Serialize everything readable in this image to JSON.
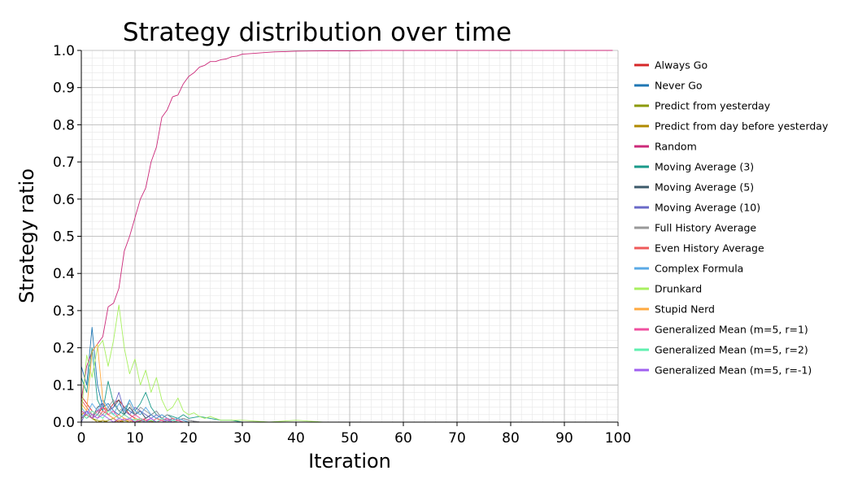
{
  "chart_data": {
    "type": "line",
    "title": "Strategy distribution over time",
    "xlabel": "Iteration",
    "ylabel": "Strategy ratio",
    "xlim": [
      0,
      100
    ],
    "ylim": [
      0,
      1
    ],
    "x_ticks": [
      0,
      10,
      20,
      30,
      40,
      50,
      60,
      70,
      80,
      90,
      100
    ],
    "y_ticks": [
      "0.0",
      "0.1",
      "0.2",
      "0.3",
      "0.4",
      "0.5",
      "0.6",
      "0.7",
      "0.8",
      "0.9",
      "1.0"
    ],
    "grid": "major and minor",
    "legend_position": "right",
    "series": [
      {
        "name": "Always Go",
        "color": "#d62728",
        "x": [
          0,
          1,
          2,
          3,
          4,
          5,
          6,
          7,
          8,
          9,
          10,
          11,
          12,
          13,
          14,
          15,
          16,
          17,
          18,
          19,
          20,
          22,
          25
        ],
        "y": [
          0.07,
          0.05,
          0.03,
          0.02,
          0.04,
          0.03,
          0.05,
          0.06,
          0.04,
          0.02,
          0.01,
          0.005,
          0.01,
          0.02,
          0.01,
          0.005,
          0.01,
          0.0,
          0.005,
          0.01,
          0.005,
          0.0,
          0.0
        ]
      },
      {
        "name": "Never Go",
        "color": "#1f77b4",
        "x": [
          0,
          1,
          2,
          3,
          4,
          5,
          6,
          7,
          8,
          9,
          10,
          11,
          12,
          13,
          14,
          15,
          16,
          17,
          18,
          19,
          20,
          22,
          25
        ],
        "y": [
          0.15,
          0.1,
          0.255,
          0.1,
          0.04,
          0.05,
          0.03,
          0.02,
          0.04,
          0.03,
          0.02,
          0.03,
          0.01,
          0.02,
          0.03,
          0.01,
          0.02,
          0.01,
          0.005,
          0.01,
          0.005,
          0.0,
          0.0
        ]
      },
      {
        "name": "Predict from yesterday",
        "color": "#8c9a0a",
        "x": [
          0,
          1,
          2,
          3,
          4,
          5,
          6,
          7,
          8,
          9,
          10,
          12,
          14,
          16,
          18,
          20,
          25
        ],
        "y": [
          0.01,
          0.02,
          0.01,
          0.005,
          0.0,
          0.005,
          0.01,
          0.0,
          0.005,
          0.0,
          0.0,
          0.005,
          0.0,
          0.0,
          0.0,
          0.0,
          0.0
        ]
      },
      {
        "name": "Predict from day before yesterday",
        "color": "#b08a00",
        "x": [
          0,
          1,
          2,
          3,
          4,
          5,
          6,
          7,
          8,
          9,
          10,
          12,
          14,
          16,
          18,
          20,
          25
        ],
        "y": [
          0.02,
          0.03,
          0.01,
          0.0,
          0.005,
          0.0,
          0.0,
          0.005,
          0.0,
          0.0,
          0.0,
          0.0,
          0.0,
          0.0,
          0.0,
          0.0,
          0.0
        ]
      },
      {
        "name": "Random",
        "color": "#cc2a7a",
        "x": [
          0,
          1,
          2,
          3,
          4,
          5,
          6,
          7,
          8,
          9,
          10,
          11,
          12,
          13,
          14,
          15,
          16,
          17,
          18,
          19,
          20,
          21,
          22,
          23,
          24,
          25,
          26,
          27,
          28,
          29,
          30,
          32,
          34,
          36,
          38,
          40,
          45,
          50,
          55,
          60,
          70,
          80,
          90,
          99
        ],
        "y": [
          0.06,
          0.15,
          0.19,
          0.21,
          0.23,
          0.31,
          0.32,
          0.36,
          0.46,
          0.5,
          0.55,
          0.6,
          0.63,
          0.7,
          0.74,
          0.82,
          0.84,
          0.875,
          0.88,
          0.91,
          0.93,
          0.94,
          0.955,
          0.96,
          0.97,
          0.97,
          0.975,
          0.977,
          0.983,
          0.985,
          0.99,
          0.992,
          0.994,
          0.996,
          0.997,
          0.998,
          0.999,
          0.999,
          1.0,
          1.0,
          1.0,
          1.0,
          1.0,
          1.0
        ]
      },
      {
        "name": "Moving Average (3)",
        "color": "#1a9a8a",
        "x": [
          0,
          1,
          2,
          3,
          4,
          5,
          6,
          7,
          8,
          9,
          10,
          11,
          12,
          13,
          14,
          15,
          16,
          17,
          18,
          19,
          20,
          22,
          24,
          26,
          28,
          30,
          35
        ],
        "y": [
          0.12,
          0.08,
          0.2,
          0.06,
          0.03,
          0.11,
          0.05,
          0.03,
          0.02,
          0.06,
          0.03,
          0.05,
          0.08,
          0.04,
          0.02,
          0.01,
          0.02,
          0.015,
          0.01,
          0.02,
          0.01,
          0.015,
          0.01,
          0.005,
          0.005,
          0.0,
          0.0
        ]
      },
      {
        "name": "Moving Average (5)",
        "color": "#3c5a6a",
        "x": [
          0,
          1,
          2,
          3,
          4,
          5,
          6,
          7,
          8,
          9,
          10,
          11,
          12,
          13,
          14,
          15,
          16,
          17,
          18,
          19,
          20,
          22,
          25
        ],
        "y": [
          0.03,
          0.02,
          0.01,
          0.04,
          0.05,
          0.03,
          0.04,
          0.06,
          0.02,
          0.04,
          0.02,
          0.03,
          0.01,
          0.02,
          0.01,
          0.02,
          0.01,
          0.005,
          0.01,
          0.005,
          0.0,
          0.0,
          0.0
        ]
      },
      {
        "name": "Moving Average (10)",
        "color": "#6a6ac8",
        "x": [
          0,
          1,
          2,
          3,
          4,
          5,
          6,
          7,
          8,
          9,
          10,
          11,
          12,
          13,
          14,
          15,
          16,
          17,
          18,
          19,
          20,
          22,
          25
        ],
        "y": [
          0.0,
          0.03,
          0.01,
          0.02,
          0.05,
          0.03,
          0.04,
          0.08,
          0.03,
          0.02,
          0.04,
          0.03,
          0.02,
          0.01,
          0.02,
          0.01,
          0.005,
          0.01,
          0.005,
          0.0,
          0.0,
          0.0,
          0.0
        ]
      },
      {
        "name": "Full History Average",
        "color": "#999999",
        "x": [
          0,
          1,
          2,
          3,
          4,
          5,
          6,
          7,
          8,
          9,
          10,
          11,
          12,
          13,
          14,
          15,
          16,
          17,
          18,
          19,
          20,
          22,
          25
        ],
        "y": [
          0.02,
          0.01,
          0.02,
          0.03,
          0.02,
          0.04,
          0.06,
          0.03,
          0.04,
          0.05,
          0.02,
          0.04,
          0.03,
          0.02,
          0.03,
          0.01,
          0.02,
          0.01,
          0.005,
          0.01,
          0.005,
          0.0,
          0.0
        ]
      },
      {
        "name": "Even History Average",
        "color": "#ef5a5a",
        "x": [
          0,
          1,
          2,
          3,
          4,
          5,
          6,
          7,
          8,
          9,
          10,
          11,
          12,
          13,
          14,
          15,
          16,
          17,
          18,
          19,
          20,
          22,
          25
        ],
        "y": [
          0.06,
          0.04,
          0.02,
          0.01,
          0.03,
          0.02,
          0.01,
          0.0,
          0.01,
          0.005,
          0.0,
          0.01,
          0.005,
          0.0,
          0.01,
          0.005,
          0.0,
          0.01,
          0.005,
          0.0,
          0.0,
          0.0,
          0.0
        ]
      },
      {
        "name": "Complex Formula",
        "color": "#5aaae6",
        "x": [
          0,
          1,
          2,
          3,
          4,
          5,
          6,
          7,
          8,
          9,
          10,
          11,
          12,
          13,
          14,
          15,
          16,
          17,
          18,
          19,
          20,
          22,
          25
        ],
        "y": [
          0.04,
          0.02,
          0.05,
          0.03,
          0.06,
          0.04,
          0.02,
          0.05,
          0.03,
          0.06,
          0.03,
          0.02,
          0.04,
          0.02,
          0.01,
          0.02,
          0.01,
          0.005,
          0.01,
          0.005,
          0.0,
          0.0,
          0.0
        ]
      },
      {
        "name": "Drunkard",
        "color": "#a8f060",
        "x": [
          0,
          1,
          2,
          3,
          4,
          5,
          6,
          7,
          8,
          9,
          10,
          11,
          12,
          13,
          14,
          15,
          16,
          17,
          18,
          19,
          20,
          21,
          22,
          23,
          24,
          25,
          26,
          28,
          30,
          35,
          40,
          45,
          50,
          55
        ],
        "y": [
          0.02,
          0.18,
          0.12,
          0.2,
          0.22,
          0.15,
          0.22,
          0.315,
          0.2,
          0.13,
          0.17,
          0.1,
          0.14,
          0.08,
          0.12,
          0.06,
          0.03,
          0.04,
          0.065,
          0.03,
          0.02,
          0.025,
          0.015,
          0.01,
          0.015,
          0.01,
          0.005,
          0.005,
          0.005,
          0.0,
          0.005,
          0.0,
          0.0,
          0.0
        ]
      },
      {
        "name": "Stupid Nerd",
        "color": "#ffaa40",
        "x": [
          0,
          1,
          2,
          3,
          4,
          5,
          6,
          7,
          8,
          9,
          10,
          11,
          12,
          13,
          14,
          15,
          16,
          17,
          18,
          19,
          20,
          22,
          25
        ],
        "y": [
          0.05,
          0.03,
          0.19,
          0.21,
          0.06,
          0.02,
          0.01,
          0.02,
          0.01,
          0.0,
          0.01,
          0.005,
          0.0,
          0.005,
          0.0,
          0.0,
          0.005,
          0.0,
          0.0,
          0.0,
          0.0,
          0.0,
          0.0
        ]
      },
      {
        "name": "Generalized Mean (m=5, r=1)",
        "color": "#f050a0",
        "x": [
          0,
          1,
          2,
          3,
          4,
          5,
          6,
          7,
          8,
          9,
          10,
          11,
          12,
          13,
          14,
          15,
          16,
          17,
          18,
          19,
          20,
          22,
          25
        ],
        "y": [
          0.03,
          0.02,
          0.01,
          0.03,
          0.04,
          0.02,
          0.03,
          0.01,
          0.02,
          0.01,
          0.02,
          0.01,
          0.005,
          0.01,
          0.0,
          0.005,
          0.01,
          0.0,
          0.005,
          0.0,
          0.0,
          0.0,
          0.0
        ]
      },
      {
        "name": "Generalized Mean (m=5, r=2)",
        "color": "#60f0b0",
        "x": [
          0,
          1,
          2,
          3,
          4,
          5,
          6,
          7,
          8,
          9,
          10,
          11,
          12,
          13,
          14,
          15,
          16,
          17,
          18,
          19,
          20,
          22,
          25
        ],
        "y": [
          0.02,
          0.01,
          0.03,
          0.02,
          0.01,
          0.03,
          0.02,
          0.01,
          0.02,
          0.01,
          0.005,
          0.01,
          0.0,
          0.005,
          0.0,
          0.01,
          0.0,
          0.005,
          0.0,
          0.0,
          0.0,
          0.0,
          0.0
        ]
      },
      {
        "name": "Generalized Mean (m=5, r=-1)",
        "color": "#a060f0",
        "x": [
          0,
          1,
          2,
          3,
          4,
          5,
          6,
          7,
          8,
          9,
          10,
          11,
          12,
          13,
          14,
          15,
          16,
          17,
          18,
          19,
          20,
          22,
          25
        ],
        "y": [
          0.01,
          0.03,
          0.02,
          0.01,
          0.02,
          0.01,
          0.0,
          0.01,
          0.005,
          0.01,
          0.0,
          0.005,
          0.0,
          0.01,
          0.0,
          0.0,
          0.005,
          0.0,
          0.0,
          0.0,
          0.0,
          0.0,
          0.0
        ]
      }
    ]
  }
}
